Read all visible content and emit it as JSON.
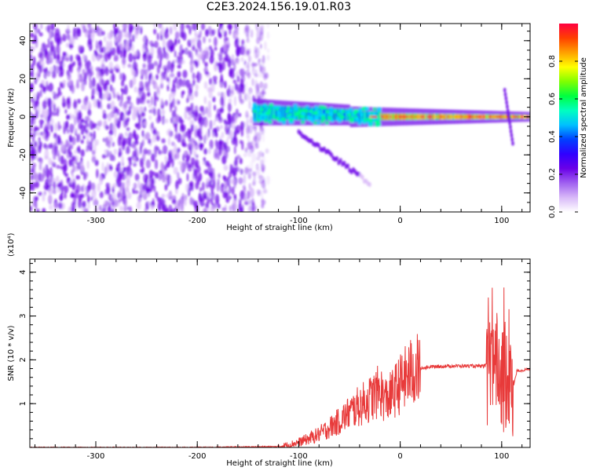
{
  "title": "C2E3.2024.156.19.01.R03",
  "colors": {
    "line": "#e83a3a",
    "frame": "#000000",
    "background": "#ffffff"
  },
  "chart_data": [
    {
      "type": "heatmap",
      "name": "spectrogram",
      "xlabel": "Height of straight line (km)",
      "ylabel": "Frequency (Hz)",
      "xlim": [
        -365,
        128
      ],
      "ylim": [
        -50,
        49
      ],
      "x_ticks": [
        -300,
        -200,
        -100,
        0,
        100
      ],
      "y_ticks": [
        -40,
        -20,
        0,
        20,
        40
      ],
      "colorbar": {
        "label": "Normalized spectral amplitude",
        "range": [
          0.0,
          1.0
        ],
        "ticks": [
          "0.0",
          "0.2",
          "0.4",
          "0.6",
          "0.8"
        ],
        "colormap": [
          "#ffffff",
          "#d8b8f8",
          "#a060f0",
          "#6a00e8",
          "#3000ff",
          "#0040ff",
          "#00c0ff",
          "#00ffc0",
          "#00ff40",
          "#80ff00",
          "#ffff00",
          "#ffa000",
          "#ff4000",
          "#ff0040"
        ]
      },
      "regions": {
        "noise": {
          "x": [
            -365,
            -140
          ],
          "y": [
            -50,
            49
          ],
          "level": 0.15
        },
        "signal_band": {
          "x": [
            -145,
            128
          ],
          "center_hz": 0,
          "level": 0.9
        },
        "descending_branch": {
          "x_from": -100,
          "x_to": -30,
          "hz_from": -8,
          "hz_to": -35
        }
      }
    },
    {
      "type": "line",
      "name": "snr",
      "xlabel": "Height of straight line (km)",
      "ylabel": "SNR (10 * v/v)",
      "ymultiplier": "(x10⁴)",
      "xlim": [
        -365,
        128
      ],
      "ylim": [
        0,
        4.3
      ],
      "x_ticks": [
        -300,
        -200,
        -100,
        0,
        100
      ],
      "y_ticks": [
        1,
        2,
        3,
        4
      ],
      "series": [
        {
          "x": [
            -365,
            -300,
            -200,
            -120,
            -110,
            -100,
            -90,
            -80,
            -70,
            -60,
            -50,
            -40,
            -30,
            -20,
            -15,
            -10,
            -5,
            0,
            10,
            20,
            30,
            40,
            50,
            60,
            70,
            80,
            85,
            90,
            95,
            100,
            105,
            110,
            115,
            128
          ],
          "y": [
            0.0,
            0.0,
            0.0,
            0.02,
            0.06,
            0.12,
            0.2,
            0.3,
            0.45,
            0.6,
            0.8,
            0.95,
            1.1,
            1.3,
            1.1,
            1.15,
            1.3,
            1.45,
            1.7,
            1.8,
            1.84,
            1.85,
            1.86,
            1.86,
            1.86,
            1.85,
            1.87,
            1.86,
            1.8,
            1.9,
            1.7,
            1.2,
            1.75,
            1.78
          ]
        }
      ]
    }
  ]
}
